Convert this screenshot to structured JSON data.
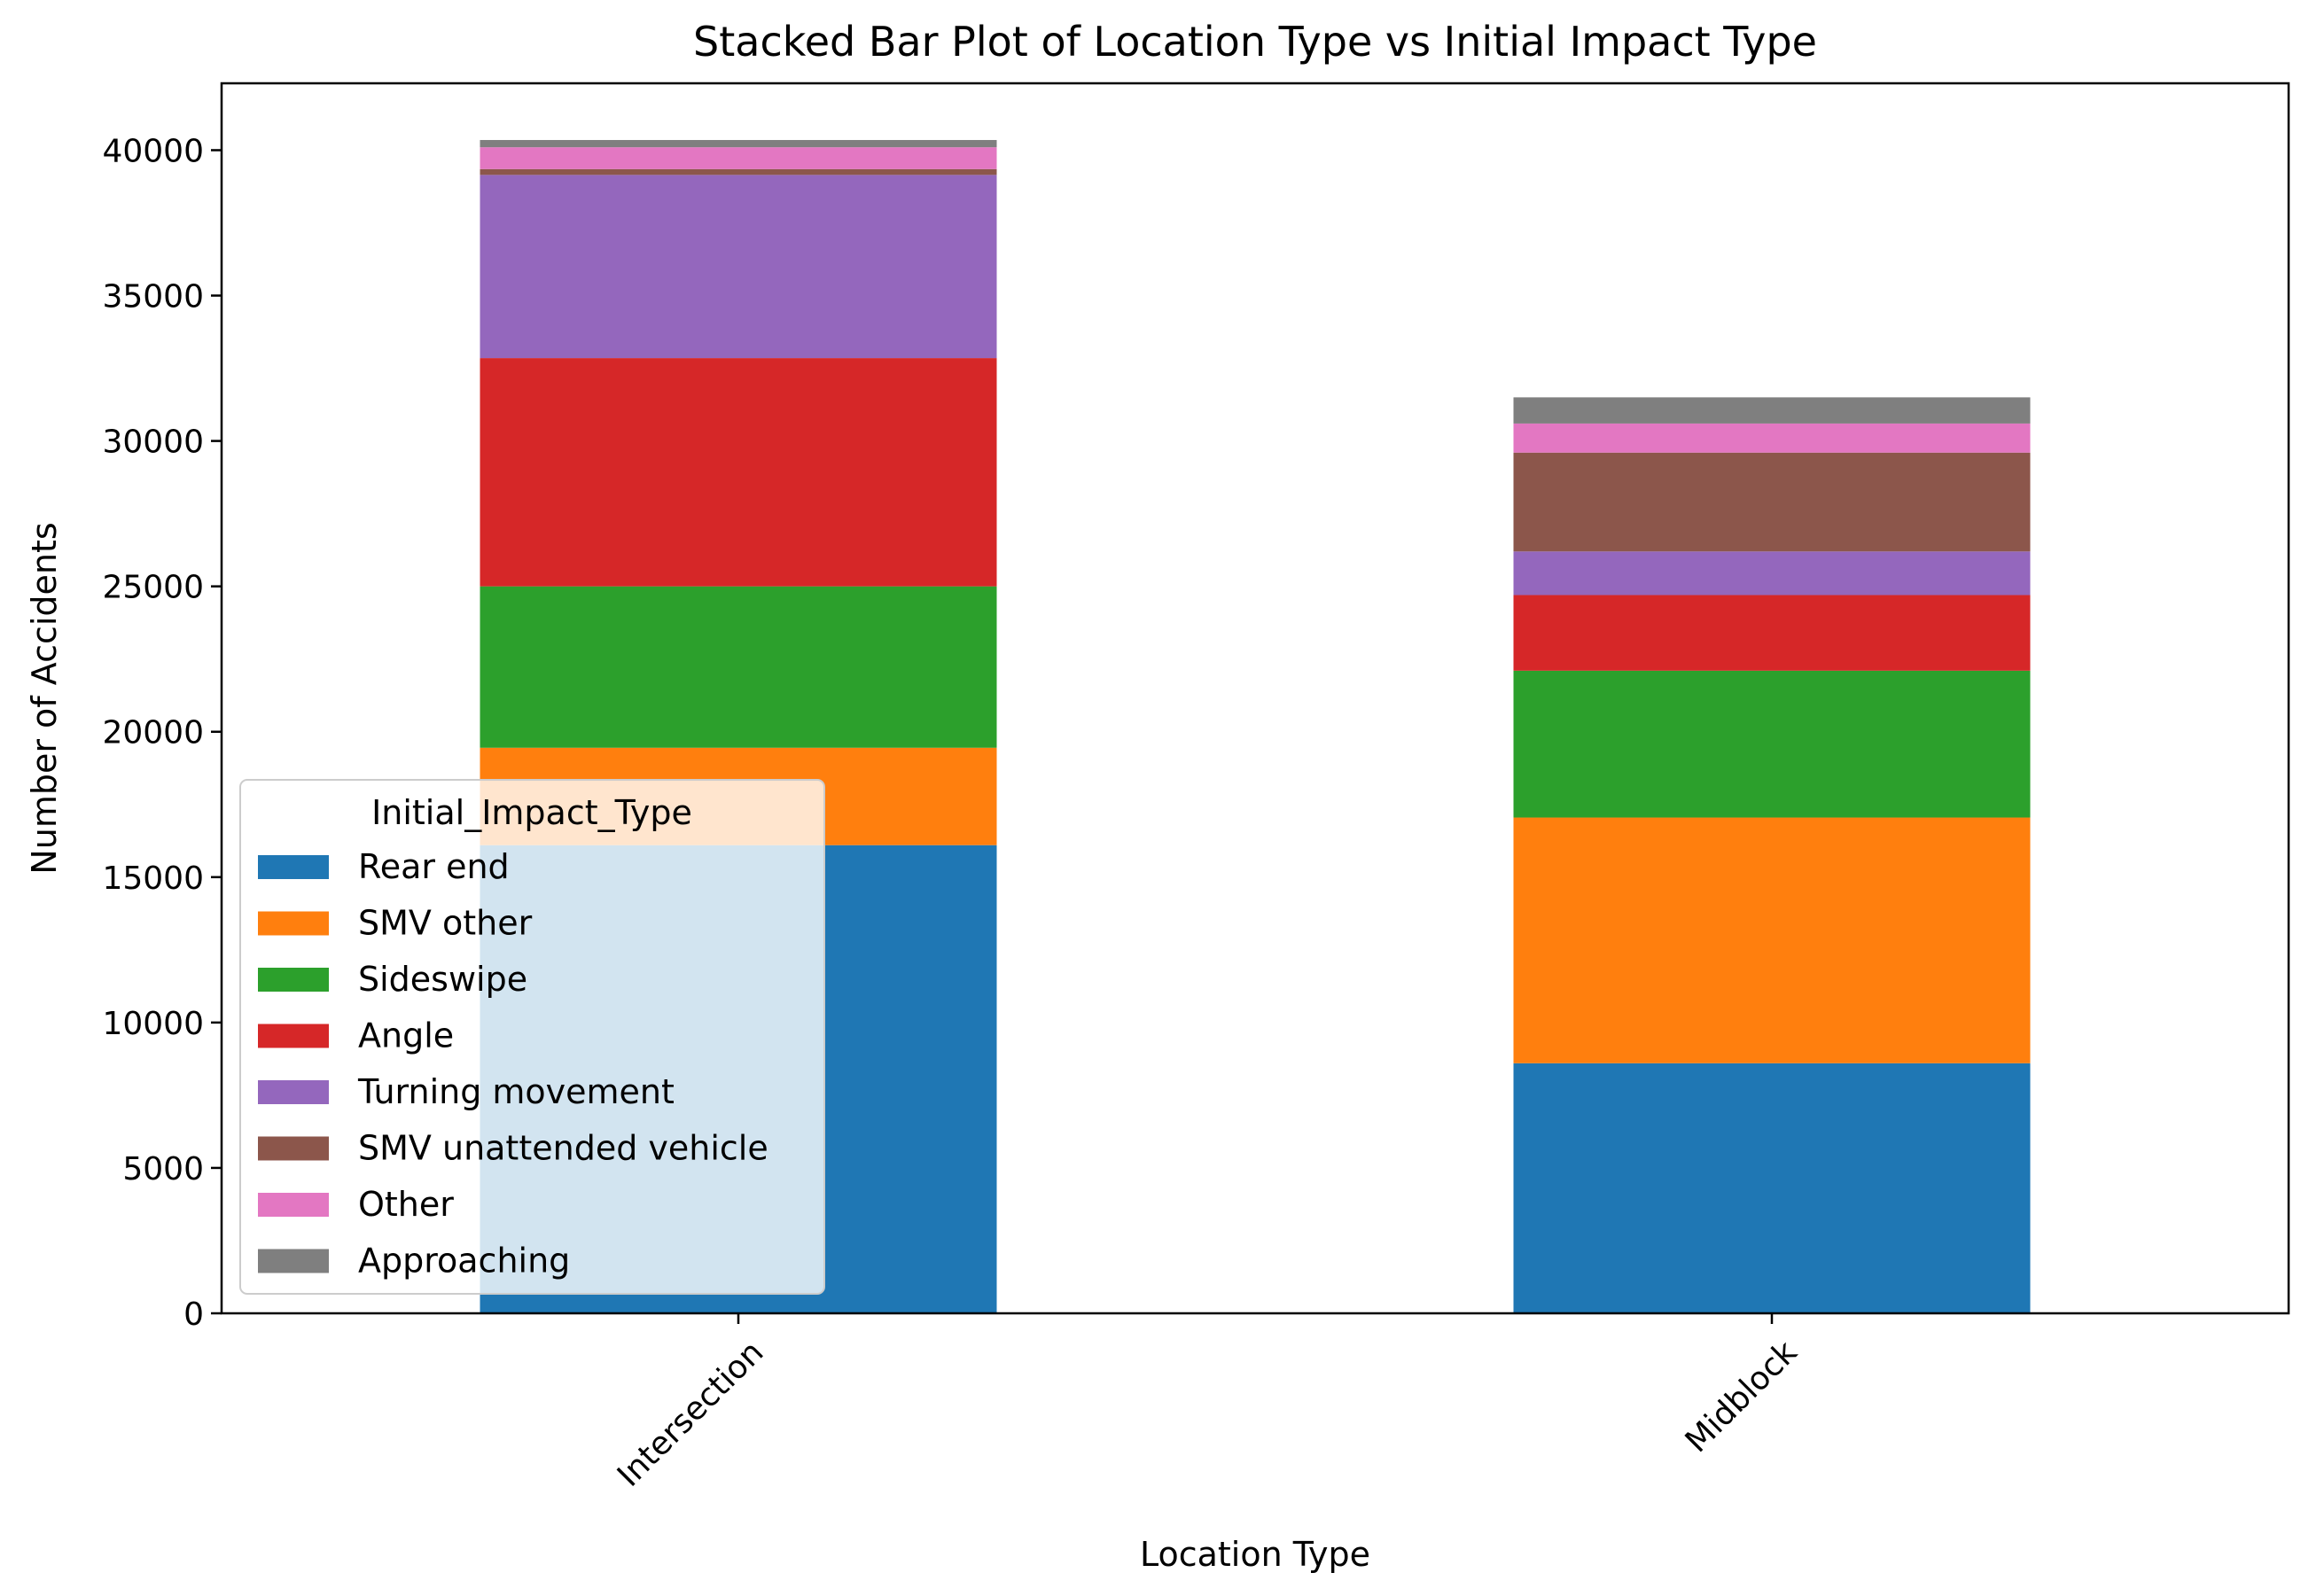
{
  "chart_data": {
    "type": "bar",
    "stacked": true,
    "title": "Stacked Bar Plot of Location Type vs Initial Impact Type",
    "xlabel": "Location Type",
    "ylabel": "Number of Accidents",
    "categories": [
      "Intersection",
      "Midblock"
    ],
    "ylim": [
      0,
      42300
    ],
    "yticks": [
      0,
      5000,
      10000,
      15000,
      20000,
      25000,
      30000,
      35000,
      40000
    ],
    "ytick_labels": [
      "0",
      "5000",
      "10000",
      "15000",
      "20000",
      "25000",
      "30000",
      "35000",
      "40000"
    ],
    "grid": false,
    "legend": {
      "title": "Initial_Impact_Type",
      "placement": "lower-left"
    },
    "series": [
      {
        "name": "Rear end",
        "color": "#1f77b4",
        "values": [
          16100,
          8600
        ]
      },
      {
        "name": "SMV other",
        "color": "#ff7f0e",
        "values": [
          3350,
          8450
        ]
      },
      {
        "name": "Sideswipe",
        "color": "#2ca02c",
        "values": [
          5550,
          5050
        ]
      },
      {
        "name": "Angle",
        "color": "#d62728",
        "values": [
          7850,
          2600
        ]
      },
      {
        "name": "Turning movement",
        "color": "#9467bd",
        "values": [
          6300,
          1500
        ]
      },
      {
        "name": "SMV unattended vehicle",
        "color": "#8c564b",
        "values": [
          200,
          3400
        ]
      },
      {
        "name": "Other",
        "color": "#e377c2",
        "values": [
          750,
          1000
        ]
      },
      {
        "name": "Approaching",
        "color": "#7f7f7f",
        "values": [
          250,
          900
        ]
      }
    ]
  }
}
